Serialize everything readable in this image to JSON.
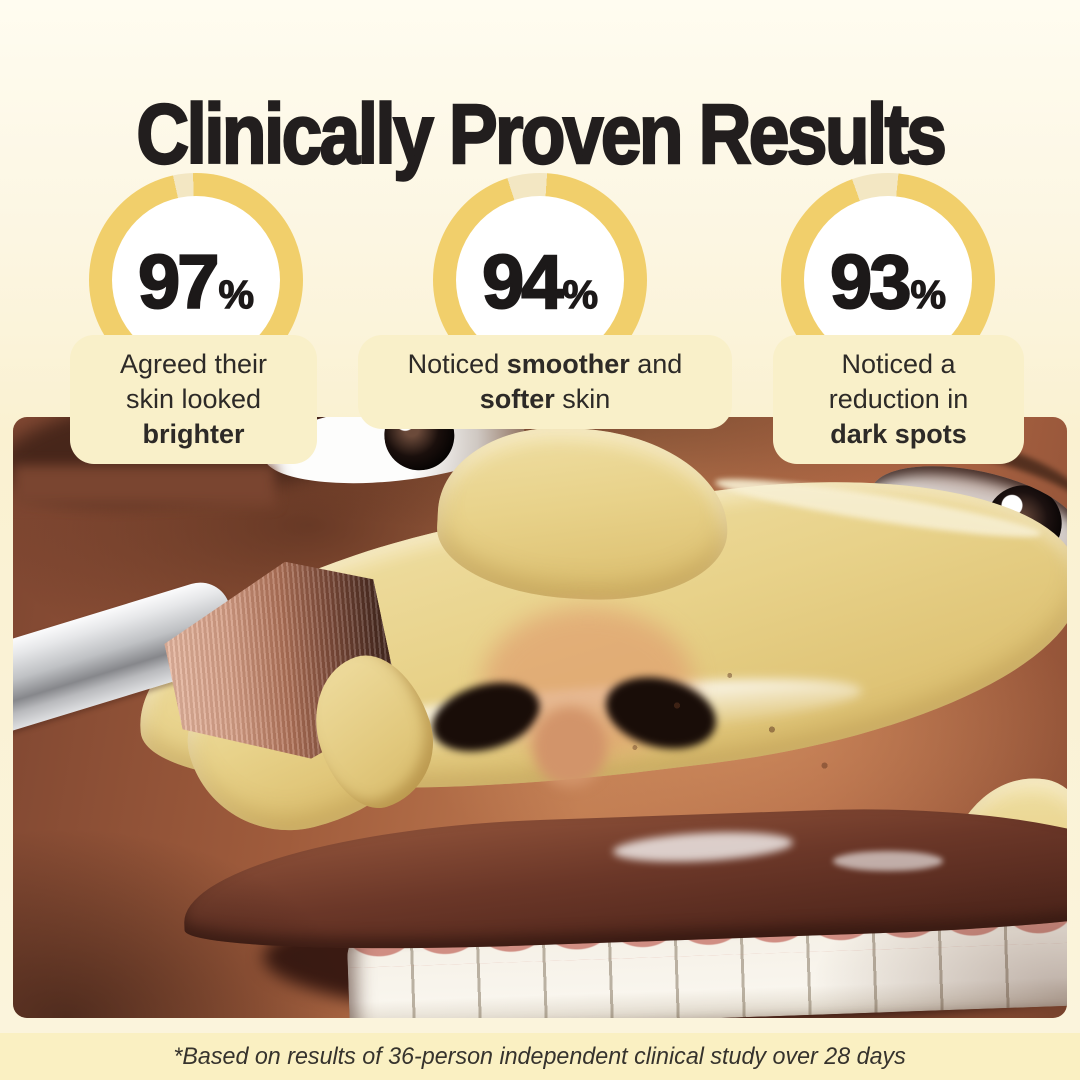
{
  "title": "Clinically Proven Results",
  "stats": [
    {
      "percent": 97,
      "value": "97",
      "unit": "%",
      "desc": {
        "line1": "Agreed their",
        "line2": "skin looked",
        "bold": "brighter"
      }
    },
    {
      "percent": 94,
      "value": "94",
      "unit": "%",
      "desc": {
        "pre": "Noticed ",
        "bold1": "smoother",
        "mid": " and",
        "bold2": "softer",
        "post": " skin"
      }
    },
    {
      "percent": 93,
      "value": "93",
      "unit": "%",
      "desc": {
        "line1": "Noticed a",
        "line2": "reduction in",
        "bold": "dark spots"
      }
    }
  ],
  "footnote": "*Based on results of 36-person independent clinical study over 28 days",
  "photo": {
    "description": "Close-up of a smiling person with yellow clay mask on cheeks and nose, applied with a silver makeup brush"
  },
  "colors": {
    "ring_fill": "#F1CF6B",
    "ring_track": "#F3E7C3",
    "page_top": "#FFFCF0",
    "page_bottom": "#FAF1D1",
    "card_bg": "#F9F0C9",
    "footnote_bg": "#FAF0C2",
    "heading_text": "#221E1E",
    "body_text": "#2D2A27"
  }
}
